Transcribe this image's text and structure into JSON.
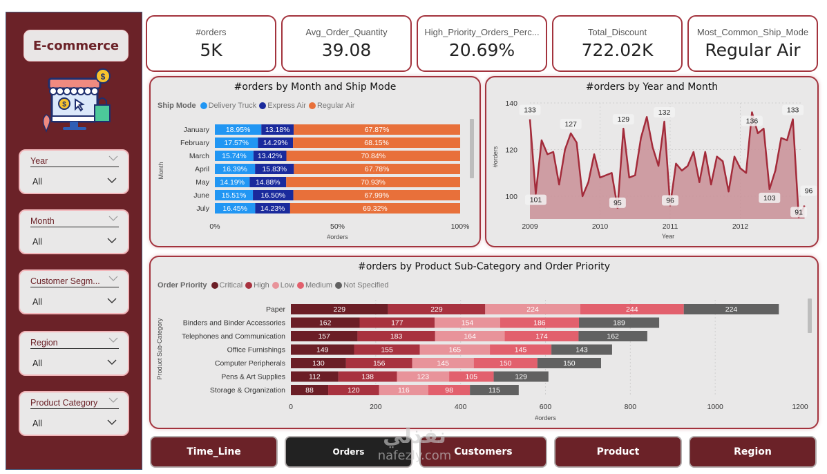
{
  "sidebar": {
    "brand": "E-commerce",
    "logo_icon": "online-store-icon",
    "slicers": [
      {
        "label": "Year",
        "value": "All"
      },
      {
        "label": "Month",
        "value": "All"
      },
      {
        "label": "Customer Segm...",
        "value": "All"
      },
      {
        "label": "Region",
        "value": "All"
      },
      {
        "label": "Product Category",
        "value": "All"
      }
    ]
  },
  "kpis": [
    {
      "label": "#orders",
      "value": "5K"
    },
    {
      "label": "Avg_Order_Quantity",
      "value": "39.08"
    },
    {
      "label": "High_Priority_Orders_Perc...",
      "value": "20.69%"
    },
    {
      "label": "Total_Discount",
      "value": "722.02K"
    },
    {
      "label": "Most_Common_Ship_Mode",
      "value": "Regular Air"
    }
  ],
  "colors": {
    "brand": "#6b2228",
    "border": "#a3333d",
    "panel_bg": "#e9e8e8",
    "delivery_truck": "#2196f3",
    "express_air": "#1a2a9c",
    "regular_air": "#e8703a",
    "critical": "#6b1e26",
    "high": "#a8323f",
    "low": "#e8939a",
    "medium": "#e2606d",
    "not_specified": "#616161",
    "line": "#a32b3a",
    "area": "#c98f96"
  },
  "chart_data": [
    {
      "type": "bar",
      "orientation": "horizontal",
      "stacked": "100%",
      "title": "#orders by Month and Ship Mode",
      "legend_title": "Ship Mode",
      "legend_position": "top-left",
      "xlabel": "#orders",
      "ylabel": "Month",
      "x_ticks": [
        "0%",
        "50%",
        "100%"
      ],
      "categories": [
        "January",
        "February",
        "March",
        "April",
        "May",
        "June",
        "July"
      ],
      "series": [
        {
          "name": "Delivery Truck",
          "color_key": "delivery_truck",
          "values": [
            18.95,
            17.57,
            15.74,
            16.39,
            14.19,
            15.51,
            16.45
          ],
          "labels": [
            "18.95%",
            "17.57%",
            "15.74%",
            "16.39%",
            "14.19%",
            "15.51%",
            "16.45%"
          ]
        },
        {
          "name": "Express Air",
          "color_key": "express_air",
          "values": [
            13.18,
            14.29,
            13.42,
            15.83,
            14.88,
            16.5,
            14.23
          ],
          "labels": [
            "13.18%",
            "14.29%",
            "13.42%",
            "15.83%",
            "14.88%",
            "16.50%",
            "14.23%"
          ]
        },
        {
          "name": "Regular Air",
          "color_key": "regular_air",
          "values": [
            67.87,
            68.15,
            70.84,
            67.78,
            70.93,
            67.99,
            69.32
          ],
          "labels": [
            "67.87%",
            "68.15%",
            "70.84%",
            "67.78%",
            "70.93%",
            "67.99%",
            "69.32%"
          ]
        }
      ]
    },
    {
      "type": "area",
      "title": "#orders by Year and Month",
      "xlabel": "Year",
      "ylabel": "#orders",
      "ylim": [
        90,
        140
      ],
      "y_ticks": [
        100,
        120,
        140
      ],
      "x_ticks": [
        "2009",
        "2010",
        "2011",
        "2012"
      ],
      "grid": true,
      "x": [
        "2009-01",
        "2009-02",
        "2009-03",
        "2009-04",
        "2009-05",
        "2009-06",
        "2009-07",
        "2009-08",
        "2009-09",
        "2009-10",
        "2009-11",
        "2009-12",
        "2010-01",
        "2010-02",
        "2010-03",
        "2010-04",
        "2010-05",
        "2010-06",
        "2010-07",
        "2010-08",
        "2010-09",
        "2010-10",
        "2010-11",
        "2010-12",
        "2011-01",
        "2011-02",
        "2011-03",
        "2011-04",
        "2011-05",
        "2011-06",
        "2011-07",
        "2011-08",
        "2011-09",
        "2011-10",
        "2011-11",
        "2011-12",
        "2012-01",
        "2012-02",
        "2012-03",
        "2012-04",
        "2012-05",
        "2012-06",
        "2012-07",
        "2012-08",
        "2012-09",
        "2012-10",
        "2012-11",
        "2012-12"
      ],
      "values": [
        133,
        101,
        124,
        118,
        119,
        105,
        120,
        127,
        123,
        100,
        106,
        118,
        108,
        109,
        110,
        95,
        129,
        108,
        109,
        125,
        134,
        121,
        113,
        132,
        96,
        114,
        111,
        113,
        119,
        106,
        119,
        105,
        117,
        115,
        102,
        117,
        112,
        110,
        136,
        127,
        129,
        103,
        111,
        125,
        124,
        133,
        91,
        96
      ],
      "data_labels": [
        {
          "index": 0,
          "text": "133",
          "pos": "above"
        },
        {
          "index": 1,
          "text": "101",
          "pos": "below"
        },
        {
          "index": 7,
          "text": "127",
          "pos": "above"
        },
        {
          "index": 15,
          "text": "95",
          "pos": "above"
        },
        {
          "index": 16,
          "text": "129",
          "pos": "above"
        },
        {
          "index": 23,
          "text": "132",
          "pos": "above"
        },
        {
          "index": 24,
          "text": "96",
          "pos": "above"
        },
        {
          "index": 38,
          "text": "136",
          "pos": "below"
        },
        {
          "index": 41,
          "text": "103",
          "pos": "below"
        },
        {
          "index": 45,
          "text": "133",
          "pos": "above"
        },
        {
          "index": 46,
          "text": "91",
          "pos": "above"
        },
        {
          "index": 47,
          "text": "96",
          "pos": "above"
        }
      ]
    },
    {
      "type": "bar",
      "orientation": "horizontal",
      "stacked": true,
      "title": "#orders by Product Sub-Category and Order Priority",
      "legend_title": "Order Priority",
      "legend_position": "top-left",
      "xlabel": "#orders",
      "ylabel": "Product Sub-Category",
      "xlim": [
        0,
        1200
      ],
      "x_ticks": [
        0,
        200,
        400,
        600,
        800,
        1000,
        1200
      ],
      "categories": [
        "Paper",
        "Binders and Binder Accessories",
        "Telephones and Communication",
        "Office Furnishings",
        "Computer Peripherals",
        "Pens & Art Supplies",
        "Storage & Organization"
      ],
      "series": [
        {
          "name": "Critical",
          "color_key": "critical",
          "values": [
            229,
            162,
            157,
            149,
            130,
            112,
            88
          ]
        },
        {
          "name": "High",
          "color_key": "high",
          "values": [
            229,
            177,
            183,
            155,
            156,
            138,
            120
          ]
        },
        {
          "name": "Low",
          "color_key": "low",
          "values": [
            224,
            154,
            164,
            165,
            145,
            123,
            116
          ]
        },
        {
          "name": "Medium",
          "color_key": "medium",
          "values": [
            244,
            186,
            174,
            145,
            150,
            105,
            98
          ]
        },
        {
          "name": "Not Specified",
          "color_key": "not_specified",
          "values": [
            224,
            189,
            162,
            143,
            150,
            129,
            115
          ]
        }
      ]
    }
  ],
  "nav": [
    {
      "label": "Time_Line",
      "active": false
    },
    {
      "label": "Orders",
      "active": true
    },
    {
      "label": "Customers",
      "active": false
    },
    {
      "label": "Product",
      "active": false
    },
    {
      "label": "Region",
      "active": false
    }
  ],
  "watermark": {
    "line1": "نفذلي",
    "line2": "nafezly.com"
  }
}
